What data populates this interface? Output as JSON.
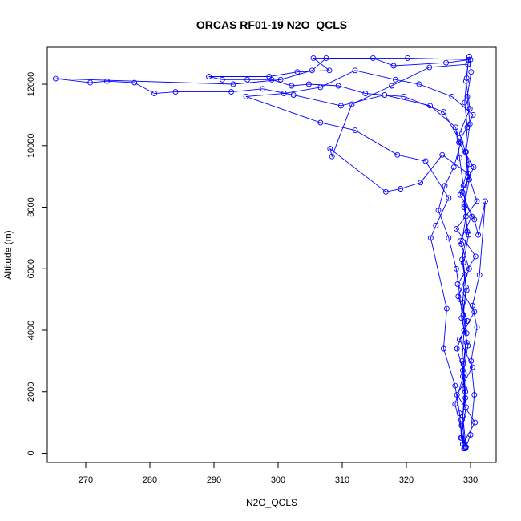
{
  "chart_data": {
    "type": "scatter",
    "title": "ORCAS RF01-19 N2O_QCLS",
    "xlabel": "N2O_QCLS",
    "ylabel": "Altitude (m)",
    "xlim": [
      264,
      334
    ],
    "ylim": [
      -300,
      13200
    ],
    "xticks": [
      270,
      280,
      290,
      300,
      310,
      320,
      330
    ],
    "yticks": [
      0,
      2000,
      4000,
      6000,
      8000,
      10000,
      12000
    ],
    "color": "#0000ff",
    "grid": false,
    "legend": "none",
    "series": [
      {
        "values": [
          [
            329.0,
            150
          ],
          [
            328.6,
            900
          ],
          [
            329.2,
            1800
          ],
          [
            328.8,
            2700
          ],
          [
            329.4,
            3600
          ],
          [
            328.9,
            4500
          ],
          [
            329.3,
            5400
          ],
          [
            328.7,
            6300
          ],
          [
            329.5,
            7200
          ],
          [
            329.0,
            8100
          ],
          [
            329.6,
            9000
          ],
          [
            329.2,
            9800
          ],
          [
            329.5,
            10600
          ],
          [
            329.1,
            11400
          ],
          [
            329.4,
            12200
          ],
          [
            329.7,
            12800
          ],
          [
            320.2,
            12850
          ],
          [
            307.5,
            12850
          ],
          [
            305.3,
            12450
          ],
          [
            300.4,
            12150
          ],
          [
            293.0,
            12000
          ],
          [
            265.3,
            12180
          ],
          [
            270.7,
            12050
          ],
          [
            273.3,
            12100
          ],
          [
            277.6,
            12050
          ],
          [
            280.7,
            11700
          ],
          [
            284.0,
            11750
          ],
          [
            292.7,
            11750
          ],
          [
            297.6,
            11850
          ],
          [
            302.4,
            11650
          ],
          [
            309.8,
            11300
          ],
          [
            316.6,
            11650
          ],
          [
            323.7,
            11300
          ],
          [
            327.7,
            10600
          ],
          [
            328.3,
            9600
          ],
          [
            328.9,
            8700
          ],
          [
            329.3,
            7700
          ],
          [
            328.6,
            6800
          ],
          [
            329.1,
            5800
          ],
          [
            328.8,
            4900
          ],
          [
            329.4,
            3900
          ],
          [
            328.9,
            2900
          ],
          [
            329.2,
            2000
          ],
          [
            328.7,
            1100
          ],
          [
            329.1,
            300
          ],
          [
            328.5,
            500
          ],
          [
            329.3,
            1500
          ],
          [
            328.8,
            2500
          ],
          [
            329.6,
            3500
          ],
          [
            328.6,
            4400
          ],
          [
            329.4,
            5300
          ],
          [
            328.9,
            6200
          ],
          [
            329.7,
            7100
          ],
          [
            329.0,
            8000
          ],
          [
            329.8,
            8900
          ],
          [
            329.3,
            9800
          ],
          [
            329.9,
            10700
          ],
          [
            329.5,
            11600
          ],
          [
            330.1,
            12400
          ],
          [
            329.8,
            12900
          ]
        ]
      },
      {
        "values": [
          [
            330.0,
            12800
          ],
          [
            326.2,
            12700
          ],
          [
            318.0,
            12600
          ],
          [
            314.8,
            12850
          ],
          [
            305.5,
            12850
          ],
          [
            308.0,
            12450
          ],
          [
            303.0,
            12400
          ],
          [
            298.6,
            12250
          ],
          [
            289.2,
            12250
          ],
          [
            291.3,
            12150
          ],
          [
            295.2,
            12150
          ],
          [
            299.0,
            12150
          ],
          [
            302.1,
            11950
          ],
          [
            304.8,
            12000
          ],
          [
            309.4,
            11950
          ],
          [
            313.6,
            11700
          ],
          [
            319.6,
            11600
          ],
          [
            325.8,
            11100
          ],
          [
            328.5,
            10100
          ],
          [
            327.4,
            9300
          ],
          [
            326.0,
            8700
          ],
          [
            325.0,
            7900
          ],
          [
            326.6,
            7000
          ],
          [
            327.8,
            6000
          ],
          [
            328.4,
            5000
          ],
          [
            329.0,
            4000
          ],
          [
            328.7,
            3000
          ],
          [
            329.1,
            2100
          ],
          [
            328.8,
            1200
          ],
          [
            329.3,
            200
          ]
        ]
      },
      {
        "values": [
          [
            329.2,
            200
          ],
          [
            327.6,
            1600
          ],
          [
            329.0,
            2600
          ],
          [
            327.9,
            3400
          ],
          [
            329.5,
            4300
          ],
          [
            328.1,
            5100
          ],
          [
            329.8,
            6000
          ],
          [
            328.4,
            6900
          ],
          [
            330.2,
            7700
          ],
          [
            328.7,
            8500
          ],
          [
            330.5,
            9300
          ],
          [
            328.2,
            10100
          ],
          [
            330.4,
            11000
          ],
          [
            327.1,
            11600
          ],
          [
            322.0,
            12000
          ],
          [
            318.3,
            12150
          ],
          [
            312.0,
            12450
          ],
          [
            306.6,
            11900
          ],
          [
            300.9,
            11700
          ],
          [
            295.0,
            11600
          ],
          [
            306.6,
            10750
          ],
          [
            312.0,
            10500
          ],
          [
            318.6,
            9700
          ],
          [
            323.0,
            9500
          ],
          [
            326.6,
            8300
          ],
          [
            324.6,
            7400
          ],
          [
            323.8,
            7000
          ],
          [
            326.3,
            4700
          ],
          [
            325.8,
            3400
          ],
          [
            327.6,
            2200
          ],
          [
            328.3,
            1300
          ],
          [
            328.6,
            500
          ]
        ]
      },
      {
        "values": [
          [
            328.8,
            300
          ],
          [
            330.7,
            1000
          ],
          [
            327.9,
            1900
          ],
          [
            330.3,
            2800
          ],
          [
            328.3,
            3700
          ],
          [
            330.6,
            4600
          ],
          [
            328.0,
            5500
          ],
          [
            330.8,
            6400
          ],
          [
            327.8,
            7300
          ],
          [
            331.0,
            8200
          ],
          [
            329.6,
            9100
          ],
          [
            325.6,
            9700
          ],
          [
            322.2,
            8800
          ],
          [
            319.1,
            8600
          ],
          [
            316.8,
            8500
          ],
          [
            308.1,
            9900
          ],
          [
            308.4,
            9650
          ],
          [
            311.5,
            11350
          ],
          [
            317.7,
            11950
          ],
          [
            323.6,
            12550
          ],
          [
            329.6,
            12650
          ],
          [
            329.3,
            12100
          ],
          [
            329.9,
            11200
          ],
          [
            328.3,
            10400
          ],
          [
            329.8,
            9400
          ],
          [
            328.4,
            8400
          ],
          [
            330.6,
            7600
          ],
          [
            331.2,
            7100
          ],
          [
            332.3,
            8200
          ],
          [
            331.4,
            5800
          ],
          [
            330.3,
            4800
          ],
          [
            331.0,
            4100
          ],
          [
            330.1,
            3000
          ],
          [
            330.6,
            1900
          ],
          [
            330.0,
            600
          ],
          [
            329.2,
            150
          ]
        ]
      }
    ]
  }
}
